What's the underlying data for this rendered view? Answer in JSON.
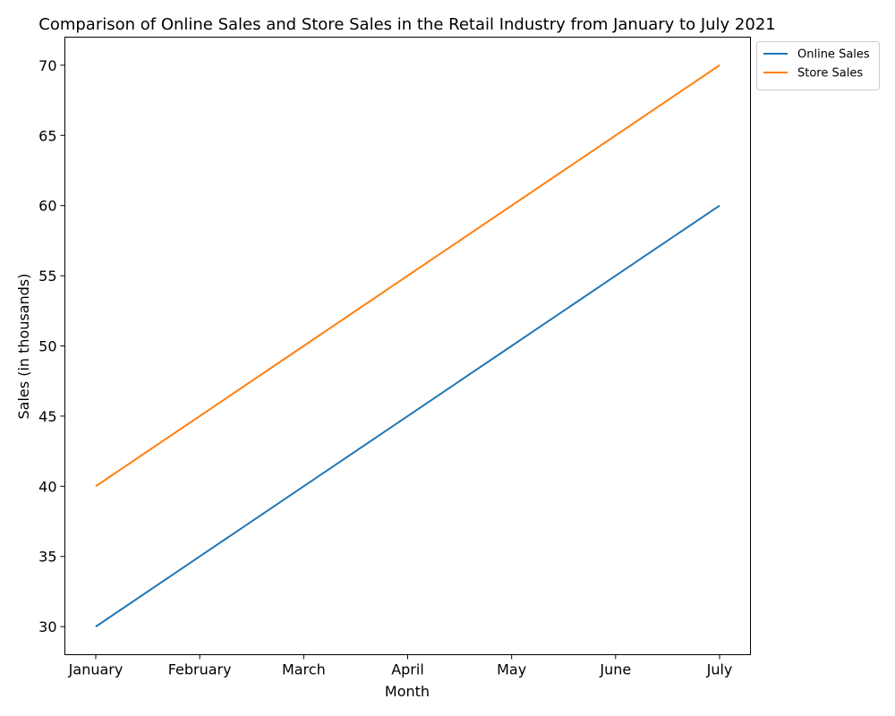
{
  "chart_data": {
    "type": "line",
    "title": "Comparison of Online Sales and Store Sales in the Retail Industry from January to July 2021",
    "xlabel": "Month",
    "ylabel": "Sales (in thousands)",
    "categories": [
      "January",
      "February",
      "March",
      "April",
      "May",
      "June",
      "July"
    ],
    "series": [
      {
        "name": "Online Sales",
        "values": [
          30,
          35,
          40,
          45,
          50,
          55,
          60
        ],
        "color": "#1f77b4"
      },
      {
        "name": "Store Sales",
        "values": [
          40,
          45,
          50,
          55,
          60,
          65,
          70
        ],
        "color": "#ff7f0e"
      }
    ],
    "ylim": [
      28,
      72
    ],
    "yticks": [
      30,
      35,
      40,
      45,
      50,
      55,
      60,
      65,
      70
    ],
    "grid": false,
    "legend_position": "outside top-right"
  }
}
